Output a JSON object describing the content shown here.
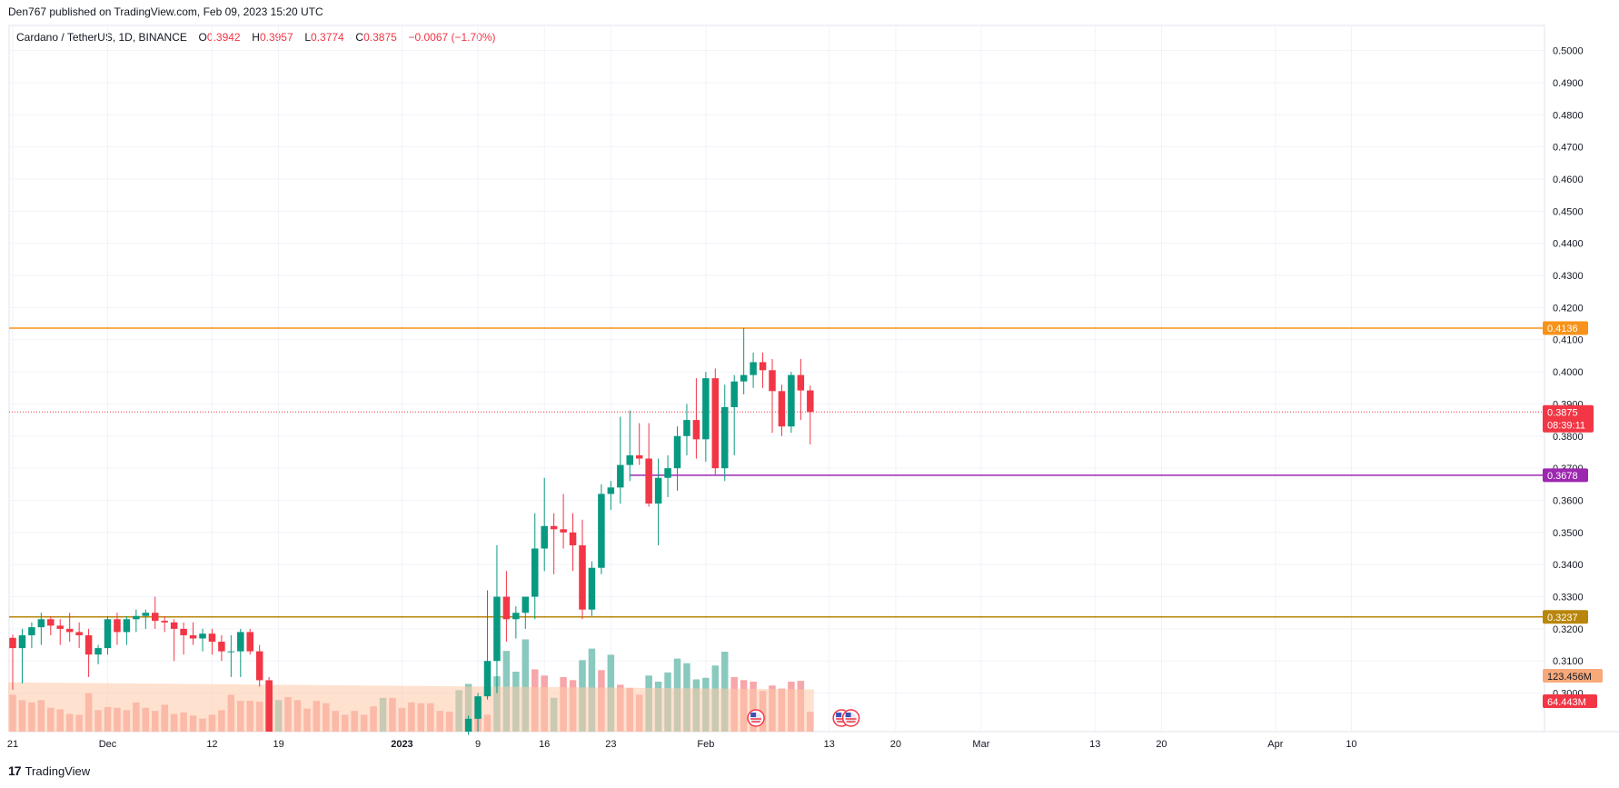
{
  "header": {
    "published": "Den767 published on TradingView.com, Feb 09, 2023 15:20 UTC"
  },
  "legend": {
    "symbol": "Cardano / TetherUS, 1D, BINANCE",
    "o_label": "O",
    "o": "0.3942",
    "h_label": "H",
    "h": "0.3957",
    "l_label": "L",
    "l": "0.3774",
    "c_label": "C",
    "c": "0.3875",
    "change": "−0.0067 (−1.70%)"
  },
  "footer": {
    "logo": "17",
    "brand": "TradingView"
  },
  "colors": {
    "up": "#089981",
    "down": "#f23645",
    "vol_up": "#89c9be",
    "vol_down": "#f7a6a9",
    "ma": "#ffc9a8",
    "resistance": "#f7931a",
    "support": "#b8860b",
    "level_purple": "#9c27b0",
    "price_line": "#f23645",
    "grid": "#f0f3fa",
    "axis_text": "#131722"
  },
  "chart_data": {
    "type": "candlestick",
    "interval": "1D",
    "ylim": [
      0.288,
      0.503
    ],
    "y_ticks": [
      "0.3000",
      "0.3100",
      "0.3200",
      "0.3300",
      "0.3400",
      "0.3500",
      "0.3600",
      "0.3700",
      "0.3800",
      "0.3900",
      "0.4000",
      "0.4100",
      "0.4200",
      "0.4300",
      "0.4400",
      "0.4500",
      "0.4600",
      "0.4700",
      "0.4800",
      "0.4900",
      "0.5000"
    ],
    "x_ticks": [
      {
        "label": "21",
        "i": 0,
        "bold": false
      },
      {
        "label": "Dec",
        "i": 10,
        "bold": false
      },
      {
        "label": "12",
        "i": 21,
        "bold": false
      },
      {
        "label": "19",
        "i": 28,
        "bold": false
      },
      {
        "label": "2023",
        "i": 41,
        "bold": true
      },
      {
        "label": "9",
        "i": 49,
        "bold": false
      },
      {
        "label": "16",
        "i": 56,
        "bold": false
      },
      {
        "label": "23",
        "i": 63,
        "bold": false
      },
      {
        "label": "Feb",
        "i": 73,
        "bold": false
      },
      {
        "label": "13",
        "i": 86,
        "bold": false
      },
      {
        "label": "20",
        "i": 93,
        "bold": false
      },
      {
        "label": "Mar",
        "i": 102,
        "bold": false
      },
      {
        "label": "13",
        "i": 114,
        "bold": false
      },
      {
        "label": "20",
        "i": 121,
        "bold": false
      },
      {
        "label": "Apr",
        "i": 133,
        "bold": false
      },
      {
        "label": "10",
        "i": 141,
        "bold": false
      }
    ],
    "candles": [
      [
        0.3172,
        0.3182,
        0.301,
        0.314
      ],
      [
        0.314,
        0.32,
        0.303,
        0.318
      ],
      [
        0.318,
        0.322,
        0.314,
        0.3205
      ],
      [
        0.3205,
        0.325,
        0.315,
        0.323
      ],
      [
        0.323,
        0.324,
        0.318,
        0.321
      ],
      [
        0.321,
        0.323,
        0.315,
        0.32
      ],
      [
        0.32,
        0.325,
        0.316,
        0.319
      ],
      [
        0.319,
        0.322,
        0.314,
        0.318
      ],
      [
        0.318,
        0.32,
        0.305,
        0.312
      ],
      [
        0.312,
        0.315,
        0.309,
        0.314
      ],
      [
        0.314,
        0.324,
        0.312,
        0.323
      ],
      [
        0.323,
        0.325,
        0.315,
        0.319
      ],
      [
        0.319,
        0.324,
        0.315,
        0.323
      ],
      [
        0.323,
        0.326,
        0.319,
        0.324
      ],
      [
        0.324,
        0.326,
        0.32,
        0.325
      ],
      [
        0.325,
        0.33,
        0.32,
        0.3225
      ],
      [
        0.3225,
        0.324,
        0.319,
        0.322
      ],
      [
        0.322,
        0.323,
        0.31,
        0.32
      ],
      [
        0.32,
        0.322,
        0.312,
        0.318
      ],
      [
        0.318,
        0.322,
        0.315,
        0.317
      ],
      [
        0.317,
        0.32,
        0.313,
        0.3185
      ],
      [
        0.3185,
        0.32,
        0.312,
        0.316
      ],
      [
        0.316,
        0.318,
        0.31,
        0.313
      ],
      [
        0.313,
        0.318,
        0.305,
        0.313
      ],
      [
        0.313,
        0.32,
        0.305,
        0.319
      ],
      [
        0.319,
        0.32,
        0.312,
        0.313
      ],
      [
        0.313,
        0.315,
        0.302,
        0.304
      ],
      [
        0.304,
        0.305,
        0.288,
        0.288
      ],
      [
        0.288,
        0.288,
        0.288,
        0.288
      ],
      [
        0.288,
        0.288,
        0.288,
        0.288
      ],
      [
        0.288,
        0.288,
        0.288,
        0.288
      ],
      [
        0.288,
        0.288,
        0.288,
        0.288
      ],
      [
        0.288,
        0.288,
        0.288,
        0.288
      ],
      [
        0.288,
        0.288,
        0.288,
        0.288
      ],
      [
        0.288,
        0.288,
        0.288,
        0.288
      ],
      [
        0.288,
        0.288,
        0.288,
        0.288
      ],
      [
        0.288,
        0.288,
        0.288,
        0.288
      ],
      [
        0.288,
        0.288,
        0.288,
        0.288
      ],
      [
        0.288,
        0.288,
        0.288,
        0.288
      ],
      [
        0.288,
        0.288,
        0.288,
        0.288
      ],
      [
        0.288,
        0.288,
        0.288,
        0.288
      ],
      [
        0.288,
        0.288,
        0.288,
        0.288
      ],
      [
        0.288,
        0.288,
        0.288,
        0.288
      ],
      [
        0.288,
        0.288,
        0.288,
        0.288
      ],
      [
        0.288,
        0.288,
        0.288,
        0.288
      ],
      [
        0.288,
        0.288,
        0.288,
        0.288
      ],
      [
        0.288,
        0.288,
        0.288,
        0.288
      ],
      [
        0.288,
        0.288,
        0.288,
        0.288
      ],
      [
        0.288,
        0.293,
        0.287,
        0.292
      ],
      [
        0.292,
        0.3,
        0.288,
        0.299
      ],
      [
        0.299,
        0.332,
        0.298,
        0.31
      ],
      [
        0.31,
        0.346,
        0.3,
        0.33
      ],
      [
        0.33,
        0.338,
        0.316,
        0.323
      ],
      [
        0.323,
        0.327,
        0.317,
        0.325
      ],
      [
        0.325,
        0.329,
        0.32,
        0.33
      ],
      [
        0.33,
        0.356,
        0.323,
        0.345
      ],
      [
        0.345,
        0.367,
        0.338,
        0.352
      ],
      [
        0.352,
        0.356,
        0.337,
        0.351
      ],
      [
        0.351,
        0.362,
        0.345,
        0.35
      ],
      [
        0.35,
        0.356,
        0.338,
        0.346
      ],
      [
        0.346,
        0.354,
        0.323,
        0.326
      ],
      [
        0.326,
        0.341,
        0.324,
        0.339
      ],
      [
        0.339,
        0.365,
        0.337,
        0.362
      ],
      [
        0.362,
        0.366,
        0.357,
        0.364
      ],
      [
        0.364,
        0.386,
        0.359,
        0.371
      ],
      [
        0.371,
        0.388,
        0.366,
        0.374
      ],
      [
        0.374,
        0.384,
        0.371,
        0.373
      ],
      [
        0.373,
        0.384,
        0.358,
        0.359
      ],
      [
        0.359,
        0.373,
        0.346,
        0.367
      ],
      [
        0.367,
        0.374,
        0.361,
        0.37
      ],
      [
        0.37,
        0.383,
        0.363,
        0.38
      ],
      [
        0.38,
        0.39,
        0.374,
        0.385
      ],
      [
        0.385,
        0.398,
        0.373,
        0.379
      ],
      [
        0.379,
        0.4,
        0.372,
        0.398
      ],
      [
        0.398,
        0.401,
        0.368,
        0.37
      ],
      [
        0.37,
        0.396,
        0.366,
        0.389
      ],
      [
        0.389,
        0.399,
        0.374,
        0.397
      ],
      [
        0.397,
        0.4136,
        0.393,
        0.399
      ],
      [
        0.399,
        0.406,
        0.395,
        0.403
      ],
      [
        0.403,
        0.406,
        0.395,
        0.4005
      ],
      [
        0.4005,
        0.404,
        0.381,
        0.394
      ],
      [
        0.394,
        0.396,
        0.38,
        0.383
      ],
      [
        0.383,
        0.4,
        0.381,
        0.399
      ],
      [
        0.399,
        0.404,
        0.385,
        0.3942
      ],
      [
        0.3942,
        0.3957,
        0.3774,
        0.3875
      ]
    ],
    "volume": {
      "ma_label": "123.456M",
      "last_label": "64.443M",
      "bars": [
        [
          48,
          0
        ],
        [
          41,
          0
        ],
        [
          38,
          0
        ],
        [
          41,
          0
        ],
        [
          31,
          0
        ],
        [
          29,
          0
        ],
        [
          23,
          0
        ],
        [
          22,
          0
        ],
        [
          50,
          0
        ],
        [
          28,
          0
        ],
        [
          32,
          0
        ],
        [
          31,
          0
        ],
        [
          28,
          0
        ],
        [
          38,
          0
        ],
        [
          31,
          0
        ],
        [
          27,
          0
        ],
        [
          35,
          0
        ],
        [
          23,
          0
        ],
        [
          25,
          0
        ],
        [
          21,
          0
        ],
        [
          17,
          0
        ],
        [
          22,
          0
        ],
        [
          28,
          0
        ],
        [
          48,
          0
        ],
        [
          40,
          0
        ],
        [
          40,
          0
        ],
        [
          39,
          0
        ],
        [
          66,
          1
        ],
        [
          41,
          1
        ],
        [
          45,
          0
        ],
        [
          41,
          0
        ],
        [
          30,
          0
        ],
        [
          40,
          0
        ],
        [
          37,
          0
        ],
        [
          27,
          0
        ],
        [
          22,
          0
        ],
        [
          27,
          0
        ],
        [
          22,
          0
        ],
        [
          33,
          0
        ],
        [
          44,
          1
        ],
        [
          44,
          0
        ],
        [
          31,
          0
        ],
        [
          38,
          0
        ],
        [
          37,
          0
        ],
        [
          37,
          0
        ],
        [
          27,
          0
        ],
        [
          26,
          0
        ],
        [
          54,
          1
        ],
        [
          62,
          1
        ],
        [
          31,
          0
        ],
        [
          22,
          0
        ],
        [
          72,
          1
        ],
        [
          105,
          1
        ],
        [
          78,
          1
        ],
        [
          120,
          1
        ],
        [
          81,
          0
        ],
        [
          73,
          0
        ],
        [
          44,
          1
        ],
        [
          71,
          0
        ],
        [
          67,
          0
        ],
        [
          93,
          1
        ],
        [
          108,
          1
        ],
        [
          80,
          0
        ],
        [
          100,
          1
        ],
        [
          61,
          0
        ],
        [
          57,
          0
        ],
        [
          48,
          0
        ],
        [
          73,
          1
        ],
        [
          65,
          1
        ],
        [
          77,
          1
        ],
        [
          95,
          1
        ],
        [
          89,
          1
        ],
        [
          68,
          1
        ],
        [
          70,
          1
        ],
        [
          86,
          1
        ],
        [
          104,
          1
        ],
        [
          71,
          0
        ],
        [
          67,
          0
        ],
        [
          65,
          0
        ],
        [
          53,
          0
        ],
        [
          60,
          0
        ],
        [
          56,
          0
        ],
        [
          65,
          0
        ],
        [
          66,
          0
        ],
        [
          26,
          0
        ]
      ]
    },
    "volume_ylim": [
      0,
      130
    ],
    "levels": [
      {
        "name": "resistance",
        "price": 0.4136,
        "label": "0.4136"
      },
      {
        "name": "support",
        "price": 0.3237,
        "label": "0.3237"
      },
      {
        "name": "level-purple",
        "price": 0.3678,
        "label": "0.3678",
        "start_i": 65
      }
    ],
    "last_price": {
      "price": 0.3875,
      "label": "0.3875",
      "countdown": "08:39:11"
    },
    "events": [
      {
        "i": 78
      },
      {
        "i": 87
      },
      {
        "i": 88
      }
    ]
  }
}
